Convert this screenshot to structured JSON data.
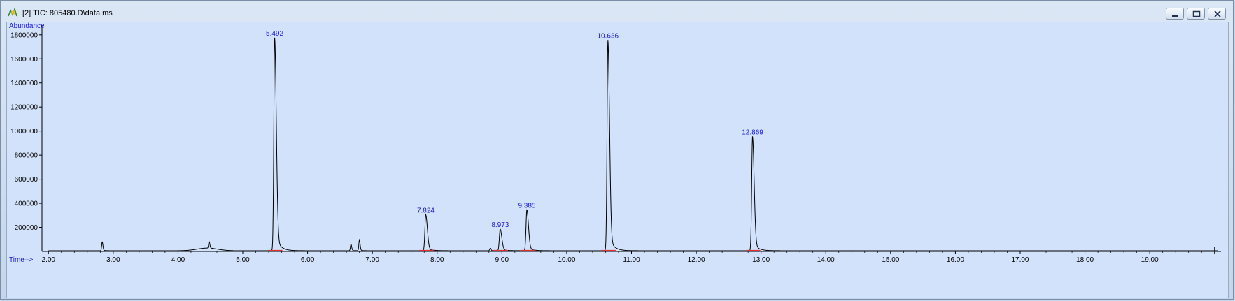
{
  "window": {
    "title": "[2] TIC: 805480.D\\data.ms",
    "icon": "chromatogram-app-icon",
    "controls": [
      "minimize-icon",
      "restore-icon",
      "close-icon"
    ]
  },
  "colors": {
    "plot_background": "#d3e2fb",
    "trace": "#000000",
    "peak_label": "#1a1ad0",
    "baseline_marker": "#e03030"
  },
  "chart_data": {
    "type": "line",
    "title": "",
    "ylabel": "Abundance",
    "xlabel": "Time-->",
    "xlim": [
      1.9,
      20.1
    ],
    "ylim": [
      0,
      1880000
    ],
    "x_ticks": [
      "2.00",
      "3.00",
      "4.00",
      "5.00",
      "6.00",
      "7.00",
      "8.00",
      "9.00",
      "10.00",
      "11.00",
      "12.00",
      "13.00",
      "14.00",
      "15.00",
      "16.00",
      "17.00",
      "18.00",
      "19.00"
    ],
    "y_ticks": [
      "200000",
      "400000",
      "600000",
      "800000",
      "1000000",
      "1200000",
      "1400000",
      "1600000",
      "1800000"
    ],
    "grid": false,
    "series": [
      {
        "peaks": [
          {
            "rt": 5.492,
            "abundance": 1770000,
            "label": "5.492"
          },
          {
            "rt": 7.824,
            "abundance": 300000,
            "label": "7.824"
          },
          {
            "rt": 8.973,
            "abundance": 180000,
            "label": "8.973"
          },
          {
            "rt": 9.385,
            "abundance": 340000,
            "label": "9.385"
          },
          {
            "rt": 10.636,
            "abundance": 1750000,
            "label": "10.636"
          },
          {
            "rt": 12.869,
            "abundance": 950000,
            "label": "12.869"
          }
        ],
        "minor_peaks": [
          {
            "rt": 2.83,
            "abundance": 75000
          },
          {
            "rt": 4.48,
            "abundance": 55000
          },
          {
            "rt": 6.67,
            "abundance": 55000
          },
          {
            "rt": 6.8,
            "abundance": 90000
          },
          {
            "rt": 8.82,
            "abundance": 20000
          }
        ]
      }
    ]
  }
}
